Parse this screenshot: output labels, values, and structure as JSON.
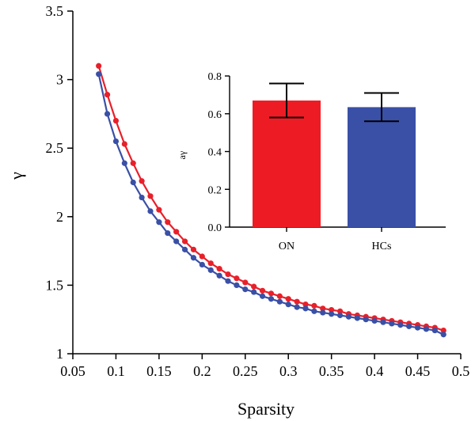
{
  "chart_data": [
    {
      "type": "line",
      "xlabel": "Sparsity",
      "ylabel": "γ",
      "xlim": [
        0.05,
        0.5
      ],
      "ylim": [
        1,
        3.5
      ],
      "xticks": [
        0.05,
        0.1,
        0.15,
        0.2,
        0.25,
        0.3,
        0.35,
        0.4,
        0.45,
        0.5
      ],
      "xtick_labels": [
        "0.05",
        "0.1",
        "0.15",
        "0.2",
        "0.25",
        "0.3",
        "0.35",
        "0.4",
        "0.45",
        "0.5"
      ],
      "yticks": [
        1,
        1.5,
        2,
        2.5,
        3,
        3.5
      ],
      "ytick_labels": [
        "1",
        "1.5",
        "2",
        "2.5",
        "3",
        "3.5"
      ],
      "colors": [
        "#e8202a",
        "#3a50a6"
      ],
      "x": [
        0.08,
        0.09,
        0.1,
        0.11,
        0.12,
        0.13,
        0.14,
        0.15,
        0.16,
        0.17,
        0.18,
        0.19,
        0.2,
        0.21,
        0.22,
        0.23,
        0.24,
        0.25,
        0.26,
        0.27,
        0.28,
        0.29,
        0.3,
        0.31,
        0.32,
        0.33,
        0.34,
        0.35,
        0.36,
        0.37,
        0.38,
        0.39,
        0.4,
        0.41,
        0.42,
        0.43,
        0.44,
        0.45,
        0.46,
        0.47,
        0.48
      ],
      "series": [
        {
          "values": [
            3.1,
            2.89,
            2.7,
            2.53,
            2.39,
            2.26,
            2.15,
            2.05,
            1.96,
            1.89,
            1.82,
            1.76,
            1.71,
            1.66,
            1.62,
            1.58,
            1.55,
            1.52,
            1.49,
            1.46,
            1.44,
            1.42,
            1.4,
            1.38,
            1.36,
            1.35,
            1.33,
            1.32,
            1.31,
            1.29,
            1.28,
            1.27,
            1.26,
            1.25,
            1.24,
            1.23,
            1.22,
            1.21,
            1.2,
            1.19,
            1.17
          ]
        },
        {
          "values": [
            3.04,
            2.75,
            2.55,
            2.39,
            2.25,
            2.14,
            2.04,
            1.96,
            1.88,
            1.82,
            1.76,
            1.7,
            1.65,
            1.61,
            1.57,
            1.53,
            1.5,
            1.47,
            1.45,
            1.42,
            1.4,
            1.38,
            1.36,
            1.34,
            1.33,
            1.31,
            1.3,
            1.29,
            1.28,
            1.27,
            1.26,
            1.25,
            1.24,
            1.23,
            1.22,
            1.21,
            1.2,
            1.19,
            1.18,
            1.17,
            1.14
          ]
        }
      ]
    },
    {
      "type": "bar",
      "ylabel": "aγ",
      "ylim": [
        0,
        0.8
      ],
      "yticks": [
        0,
        0.2,
        0.4,
        0.6,
        0.8
      ],
      "ytick_labels": [
        "0.0",
        "0.2",
        "0.4",
        "0.6",
        "0.8"
      ],
      "categories": [
        "ON",
        "HCs"
      ],
      "values": [
        0.67,
        0.635
      ],
      "errors": [
        0.09,
        0.075
      ],
      "colors": [
        "#ed1c24",
        "#3a50a6"
      ]
    }
  ]
}
